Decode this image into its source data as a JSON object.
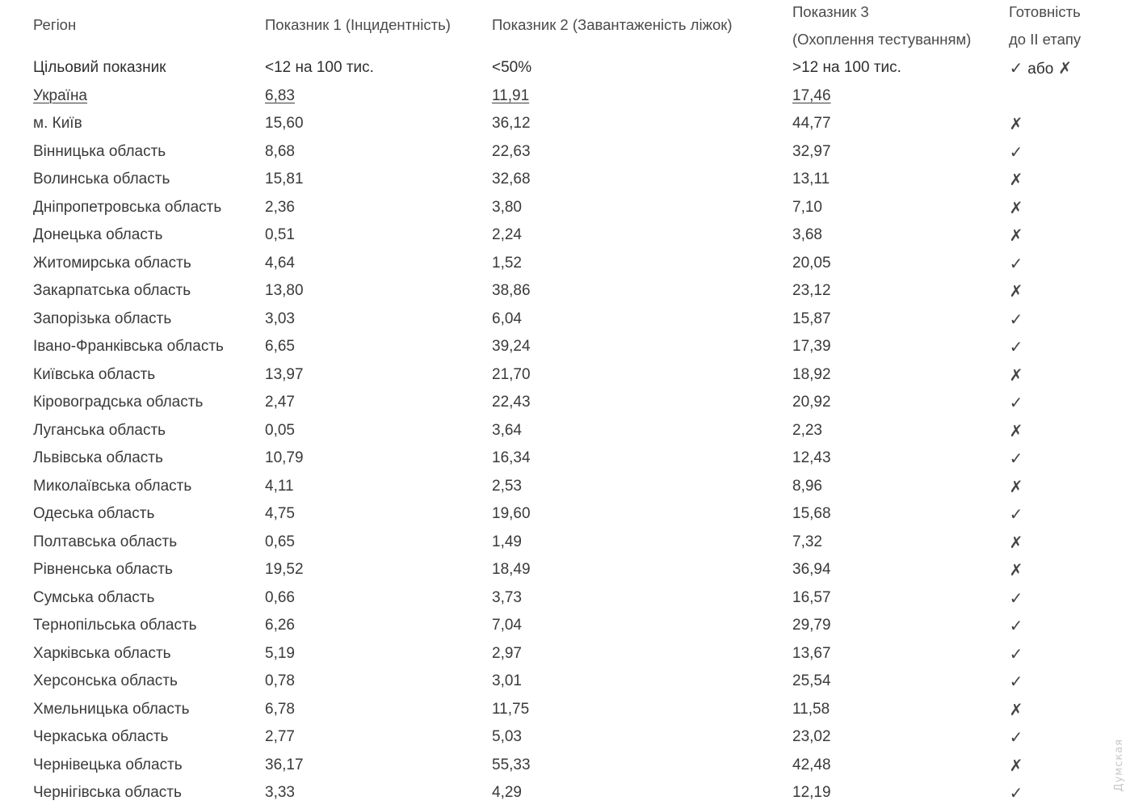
{
  "headers": {
    "region": "Регіон",
    "ind1": "Показник 1 (Інцидентність)",
    "ind2": "Показник 2 (Завантаженість ліжок)",
    "ind3_line1": "Показник 3",
    "ind3_line2": "(Охоплення тестуванням)",
    "ready_line1": "Готовність",
    "ready_line2": "до ІІ етапу"
  },
  "target": {
    "label": "Цільовий показник",
    "ind1": "<12 на 100 тис.",
    "ind2": "<50%",
    "ind3": ">12 на 100 тис.",
    "ready_yes": "✓",
    "ready_or": "або",
    "ready_no": "✗"
  },
  "ukraine": {
    "region": "Україна",
    "ind1": "6,83",
    "ind2": "11,91",
    "ind3": "17,46"
  },
  "rows": [
    {
      "region": "м. Київ",
      "ind1": "15,60",
      "ind2": "36,12",
      "ind3": "44,77",
      "ready": "✗"
    },
    {
      "region": "Вінницька область",
      "ind1": "8,68",
      "ind2": "22,63",
      "ind3": "32,97",
      "ready": "✓"
    },
    {
      "region": "Волинська область",
      "ind1": "15,81",
      "ind2": "32,68",
      "ind3": "13,11",
      "ready": "✗"
    },
    {
      "region": "Дніпропетровська область",
      "ind1": "2,36",
      "ind2": "3,80",
      "ind3": "7,10",
      "ready": "✗"
    },
    {
      "region": "Донецька область",
      "ind1": "0,51",
      "ind2": "2,24",
      "ind3": "3,68",
      "ready": "✗"
    },
    {
      "region": "Житомирська область",
      "ind1": "4,64",
      "ind2": "1,52",
      "ind3": "20,05",
      "ready": "✓"
    },
    {
      "region": "Закарпатська область",
      "ind1": "13,80",
      "ind2": "38,86",
      "ind3": "23,12",
      "ready": "✗"
    },
    {
      "region": "Запорізька область",
      "ind1": "3,03",
      "ind2": "6,04",
      "ind3": "15,87",
      "ready": "✓"
    },
    {
      "region": "Івано-Франківська область",
      "ind1": "6,65",
      "ind2": "39,24",
      "ind3": "17,39",
      "ready": "✓"
    },
    {
      "region": "Київська область",
      "ind1": "13,97",
      "ind2": "21,70",
      "ind3": "18,92",
      "ready": "✗"
    },
    {
      "region": "Кіровоградська область",
      "ind1": "2,47",
      "ind2": "22,43",
      "ind3": "20,92",
      "ready": "✓"
    },
    {
      "region": "Луганська область",
      "ind1": "0,05",
      "ind2": "3,64",
      "ind3": "2,23",
      "ready": "✗"
    },
    {
      "region": "Львівська область",
      "ind1": "10,79",
      "ind2": "16,34",
      "ind3": "12,43",
      "ready": "✓"
    },
    {
      "region": "Миколаївська область",
      "ind1": "4,11",
      "ind2": "2,53",
      "ind3": "8,96",
      "ready": "✗"
    },
    {
      "region": "Одеська область",
      "ind1": "4,75",
      "ind2": "19,60",
      "ind3": "15,68",
      "ready": "✓"
    },
    {
      "region": "Полтавська область",
      "ind1": "0,65",
      "ind2": "1,49",
      "ind3": "7,32",
      "ready": "✗"
    },
    {
      "region": "Рівненська область",
      "ind1": "19,52",
      "ind2": "18,49",
      "ind3": "36,94",
      "ready": "✗"
    },
    {
      "region": "Сумська область",
      "ind1": "0,66",
      "ind2": "3,73",
      "ind3": "16,57",
      "ready": "✓"
    },
    {
      "region": "Тернопільська область",
      "ind1": "6,26",
      "ind2": "7,04",
      "ind3": "29,79",
      "ready": "✓"
    },
    {
      "region": "Харківська область",
      "ind1": "5,19",
      "ind2": "2,97",
      "ind3": "13,67",
      "ready": "✓"
    },
    {
      "region": "Херсонська область",
      "ind1": "0,78",
      "ind2": "3,01",
      "ind3": "25,54",
      "ready": "✓"
    },
    {
      "region": "Хмельницька область",
      "ind1": "6,78",
      "ind2": "11,75",
      "ind3": "11,58",
      "ready": "✗"
    },
    {
      "region": "Черкаська область",
      "ind1": "2,77",
      "ind2": "5,03",
      "ind3": "23,02",
      "ready": "✓"
    },
    {
      "region": "Чернівецька область",
      "ind1": "36,17",
      "ind2": "55,33",
      "ind3": "42,48",
      "ready": "✗"
    },
    {
      "region": "Чернігівська область",
      "ind1": "3,33",
      "ind2": "4,29",
      "ind3": "12,19",
      "ready": "✓"
    }
  ],
  "watermark": "Думская"
}
